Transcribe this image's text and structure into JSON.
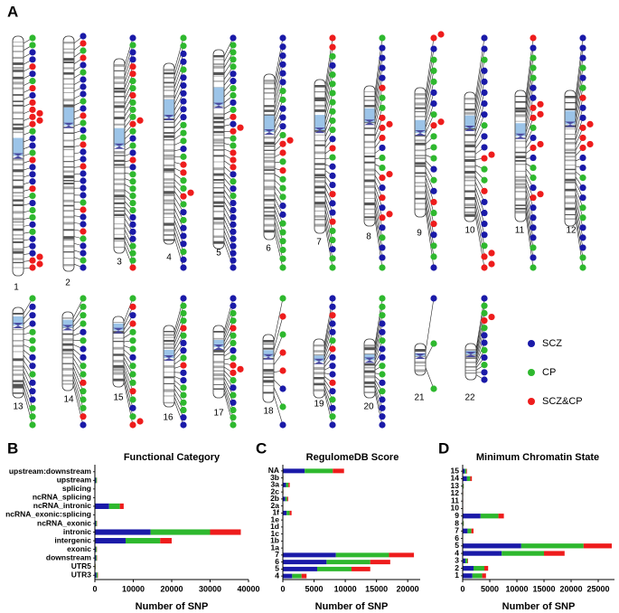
{
  "panel_labels": [
    "A",
    "B",
    "C",
    "D"
  ],
  "chromosomes": [
    "1",
    "2",
    "3",
    "4",
    "5",
    "6",
    "7",
    "8",
    "9",
    "10",
    "11",
    "12",
    "13",
    "14",
    "15",
    "16",
    "17",
    "18",
    "19",
    "20",
    "21",
    "22"
  ],
  "chart_data": [
    {
      "type": "hbar_stacked",
      "title": "Functional Category",
      "x_label": "Number of SNP",
      "categories": [
        "upstream:downstream",
        "upstream",
        "splicing",
        "ncRNA_splicing",
        "ncRNA_intronic",
        "ncRNA_exonic:splicing",
        "ncRNA_exonic",
        "intronic",
        "intergenic",
        "exonic",
        "downstream",
        "UTR5",
        "UTR3"
      ],
      "series": [
        {
          "name": "SCZ",
          "color": "#1a1aa8",
          "values": [
            50,
            300,
            20,
            10,
            3700,
            5,
            300,
            14500,
            8000,
            250,
            300,
            100,
            400
          ]
        },
        {
          "name": "CP",
          "color": "#2eb82e",
          "values": [
            30,
            200,
            10,
            5,
            2800,
            3,
            200,
            15500,
            9000,
            200,
            200,
            80,
            300
          ]
        },
        {
          "name": "SCZ&CP",
          "color": "#ee1c1c",
          "values": [
            10,
            50,
            5,
            2,
            1000,
            1,
            80,
            8000,
            3000,
            80,
            80,
            30,
            100
          ]
        }
      ],
      "xlim": [
        0,
        40000
      ],
      "xticks": [
        0,
        10000,
        20000,
        30000,
        40000
      ]
    },
    {
      "type": "hbar_stacked",
      "title": "RegulomeDB Score",
      "x_label": "Number of SNP",
      "categories": [
        "NA",
        "3b",
        "3a",
        "2c",
        "2b",
        "2a",
        "1f",
        "1e",
        "1d",
        "1c",
        "1b",
        "1a",
        "7",
        "6",
        "5",
        "4"
      ],
      "series": [
        {
          "name": "SCZ",
          "color": "#1a1aa8",
          "values": [
            3500,
            50,
            500,
            50,
            400,
            40,
            600,
            5,
            5,
            5,
            5,
            5,
            8500,
            7000,
            5500,
            1500
          ]
        },
        {
          "name": "CP",
          "color": "#2eb82e",
          "values": [
            4500,
            40,
            400,
            40,
            300,
            30,
            500,
            3,
            3,
            3,
            3,
            3,
            8500,
            7000,
            5500,
            1500
          ]
        },
        {
          "name": "SCZ&CP",
          "color": "#ee1c1c",
          "values": [
            1800,
            10,
            200,
            10,
            150,
            10,
            300,
            1,
            1,
            1,
            1,
            1,
            4000,
            3200,
            3000,
            800
          ]
        }
      ],
      "xlim": [
        0,
        22000
      ],
      "xticks": [
        0,
        5000,
        10000,
        15000,
        20000
      ]
    },
    {
      "type": "hbar_stacked",
      "title": "Minimum Chromatin State",
      "x_label": "Number of SNP",
      "categories": [
        "15",
        "14",
        "13",
        "12",
        "11",
        "10",
        "9",
        "8",
        "7",
        "6",
        "5",
        "4",
        "3",
        "2",
        "1"
      ],
      "series": [
        {
          "name": "SCZ",
          "color": "#1a1aa8",
          "values": [
            400,
            800,
            100,
            50,
            50,
            50,
            3300,
            100,
            900,
            10,
            10800,
            7200,
            500,
            2000,
            1800
          ]
        },
        {
          "name": "CP",
          "color": "#2eb82e",
          "values": [
            300,
            600,
            80,
            40,
            30,
            30,
            3300,
            80,
            700,
            5,
            11500,
            7800,
            400,
            2000,
            1800
          ]
        },
        {
          "name": "SCZ&CP",
          "color": "#ee1c1c",
          "values": [
            100,
            300,
            30,
            10,
            10,
            10,
            1000,
            30,
            400,
            2,
            5200,
            3800,
            100,
            700,
            700
          ]
        }
      ],
      "xlim": [
        0,
        28000
      ],
      "xticks": [
        0,
        5000,
        10000,
        15000,
        20000,
        25000
      ]
    }
  ]
}
